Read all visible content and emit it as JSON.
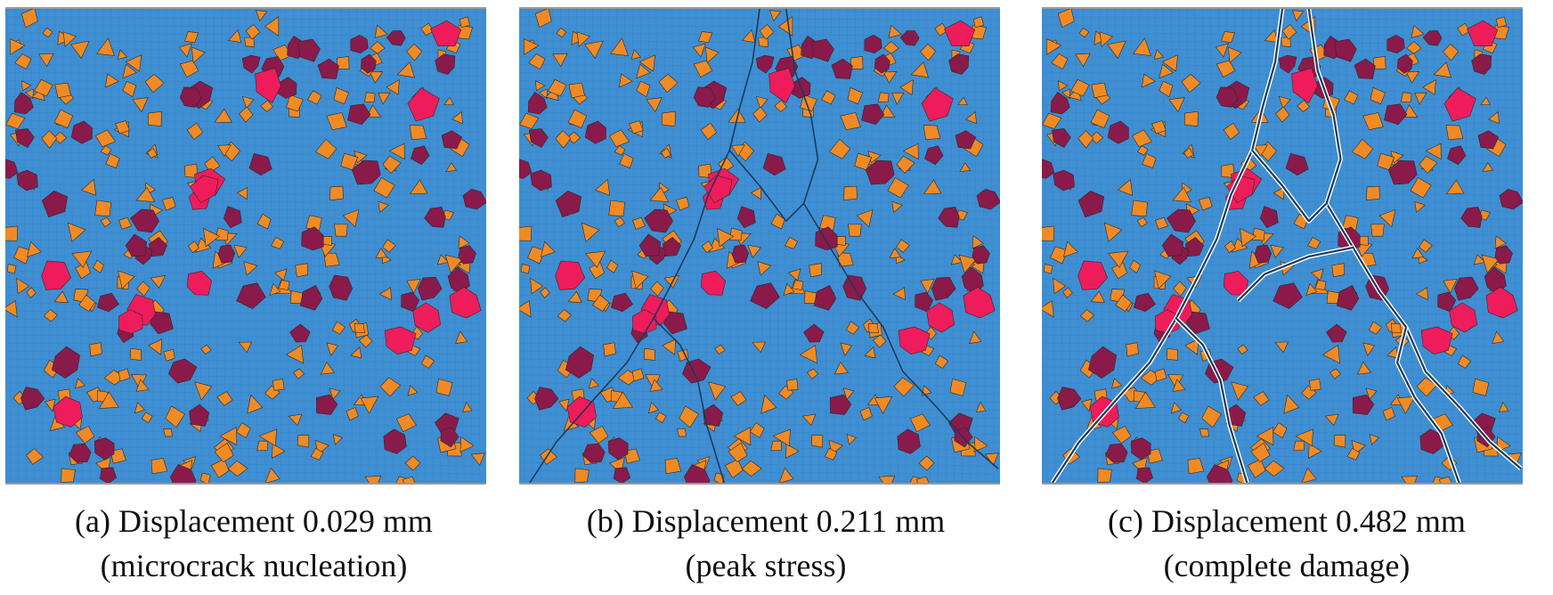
{
  "panels": [
    {
      "id": "a",
      "caption_line1": "(a) Displacement 0.029 mm",
      "caption_line2": "(microcrack nucleation)",
      "damage_level": 0
    },
    {
      "id": "b",
      "caption_line1": "(b) Displacement 0.211 mm",
      "caption_line2": "(peak stress)",
      "damage_level": 1
    },
    {
      "id": "c",
      "caption_line1": "(c) Displacement 0.482 mm",
      "caption_line2": "(complete damage)",
      "damage_level": 2
    }
  ],
  "colors": {
    "matrix": "#3f8fd2",
    "mesh": "#2f79bd",
    "small_aggregate": "#f08a24",
    "medium_aggregate": "#8a1a4a",
    "large_aggregate": "#ee1c5a",
    "crack": "#1a3a5c",
    "crack_gap": "#ffffff"
  }
}
